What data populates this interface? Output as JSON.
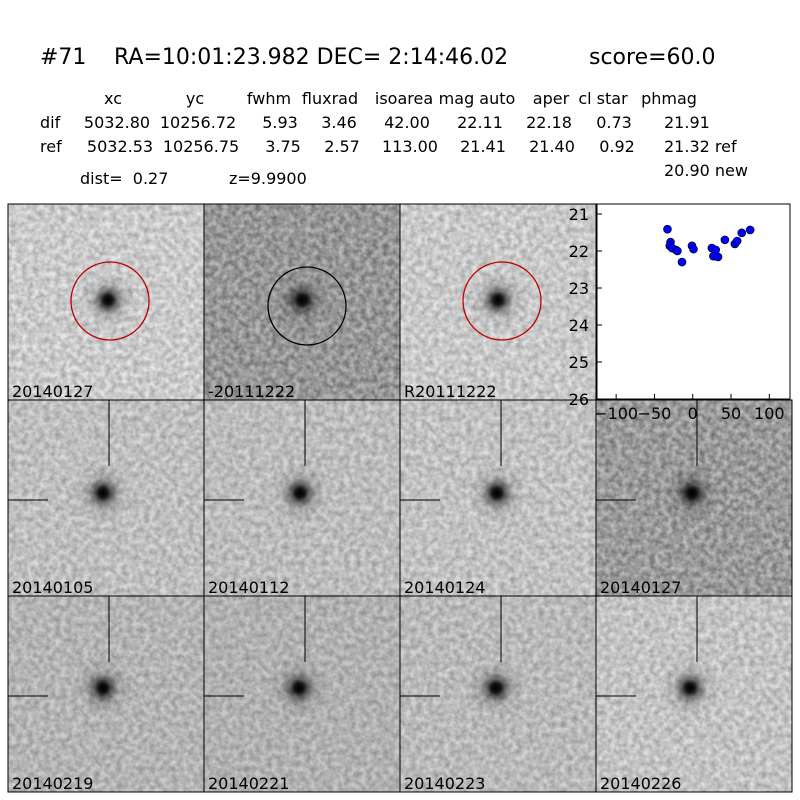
{
  "header": {
    "id": "#71",
    "coords": "RA=10:01:23.982 DEC= 2:14:46.02",
    "score": "score=60.0"
  },
  "table": {
    "columns": [
      "xc",
      "yc",
      "fwhm",
      "fluxrad",
      "isoarea",
      "mag auto",
      "aper",
      "cl star",
      "phmag"
    ],
    "rows": [
      [
        "dif",
        "5032.80",
        "10256.72",
        "5.93",
        "3.46",
        "42.00",
        "22.11",
        "22.18",
        "0.73",
        "21.91"
      ],
      [
        "ref",
        "5032.53",
        "10256.75",
        "3.75",
        "2.57",
        "113.00",
        "21.41",
        "21.40",
        "0.92",
        "21.32 ref"
      ]
    ],
    "extra": "20.90 new"
  },
  "dist": "dist=  0.27",
  "z": "z=9.9900",
  "panels": [
    "20140127",
    "-20111222",
    "R20111222",
    "20140105",
    "20140112",
    "20140124",
    "20140127",
    "20140219",
    "20140221",
    "20140223",
    "20140226"
  ],
  "chart_data": {
    "type": "scatter",
    "color": "#0000ff",
    "x": [
      -33,
      -29,
      -30,
      -22,
      -27,
      -20,
      -14,
      -1,
      1,
      25,
      30,
      27,
      33,
      42,
      55,
      58,
      64,
      75
    ],
    "values": [
      21.41,
      21.76,
      21.86,
      21.97,
      21.92,
      22.0,
      22.3,
      21.86,
      21.95,
      21.92,
      21.97,
      22.14,
      22.16,
      21.7,
      21.81,
      21.73,
      21.51,
      21.43
    ],
    "xlim": [
      -125,
      127
    ],
    "ylim": [
      26,
      20.73
    ],
    "xticks": [
      {
        "value": -100,
        "label": "−100"
      },
      {
        "value": -50,
        "label": "−50"
      },
      0,
      50,
      100
    ],
    "yticks": [
      21,
      22,
      23,
      24,
      25,
      26
    ]
  }
}
